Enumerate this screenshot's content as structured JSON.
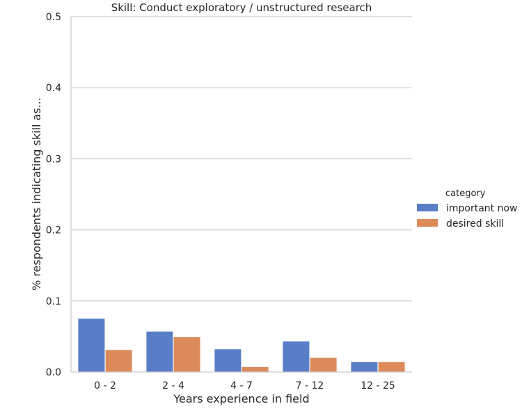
{
  "chart_data": {
    "type": "bar",
    "title": "Skill: Conduct exploratory / unstructured research",
    "xlabel": "Years experience in field",
    "ylabel": "% respondents indicating skill as...",
    "categories": [
      "0 - 2",
      "2 - 4",
      "4 - 7",
      "7 - 12",
      "12 - 25"
    ],
    "series": [
      {
        "name": "important now",
        "color": "#5a7dc8",
        "values": [
          0.075,
          0.057,
          0.032,
          0.043,
          0.014
        ]
      },
      {
        "name": "desired skill",
        "color": "#dd8a5a",
        "values": [
          0.031,
          0.049,
          0.007,
          0.02,
          0.014
        ]
      }
    ],
    "ylim": [
      0,
      0.5
    ],
    "yticks": [
      "0.0",
      "0.1",
      "0.2",
      "0.3",
      "0.4",
      "0.5"
    ],
    "grid": true,
    "legend": {
      "title": "category",
      "position": "right"
    }
  }
}
